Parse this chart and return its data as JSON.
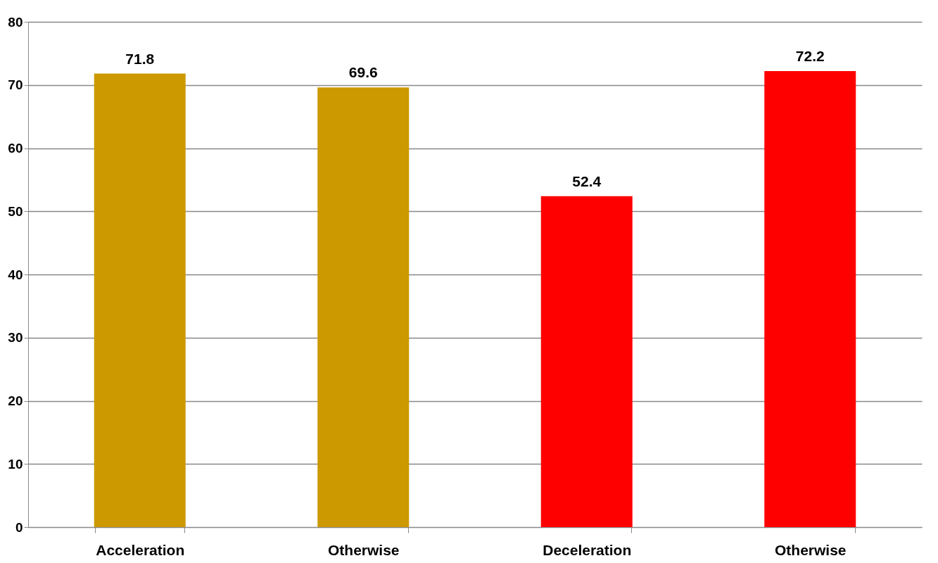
{
  "chart_data": {
    "type": "bar",
    "categories": [
      "Acceleration",
      "Otherwise",
      "Deceleration",
      "Otherwise"
    ],
    "values": [
      71.8,
      69.6,
      52.4,
      72.2
    ],
    "colors": [
      "#cc9900",
      "#cc9900",
      "#ff0000",
      "#ff0000"
    ],
    "ylim": [
      0,
      80
    ],
    "yticks": [
      0,
      10,
      20,
      30,
      40,
      50,
      60,
      70,
      80
    ],
    "grid": "y",
    "data_labels": true
  }
}
